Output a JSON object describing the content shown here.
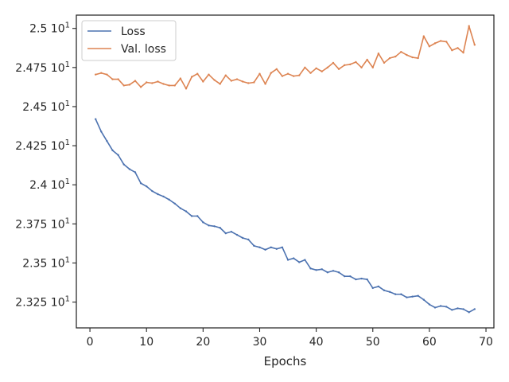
{
  "chart_data": {
    "type": "line",
    "xlabel": "Epochs",
    "ylabel": "",
    "xlim": [
      -2.4,
      71.4
    ],
    "ylim": [
      23.085,
      25.085
    ],
    "xticks": [
      0,
      10,
      20,
      30,
      40,
      50,
      60,
      70
    ],
    "xtick_labels": [
      "0",
      "10",
      "20",
      "30",
      "40",
      "50",
      "60",
      "70"
    ],
    "yticks": [
      23.25,
      23.5,
      23.75,
      24.0,
      24.25,
      24.5,
      24.75,
      25.0
    ],
    "ytick_labels": [
      "2.325 × 10¹",
      "2.35 × 10¹",
      "2.375 × 10¹",
      "2.4 × 10¹",
      "2.425 × 10¹",
      "2.45 × 10¹",
      "2.475 × 10¹",
      "2.5 × 10¹"
    ],
    "legend_position": "top-left",
    "grid": false,
    "series": [
      {
        "name": "Loss",
        "color": "#4c72b0",
        "x": [
          1,
          2,
          3,
          4,
          5,
          6,
          7,
          8,
          9,
          10,
          11,
          12,
          13,
          14,
          15,
          16,
          17,
          18,
          19,
          20,
          21,
          22,
          23,
          24,
          25,
          26,
          27,
          28,
          29,
          30,
          31,
          32,
          33,
          34,
          35,
          36,
          37,
          38,
          39,
          40,
          41,
          42,
          43,
          44,
          45,
          46,
          47,
          48,
          49,
          50,
          51,
          52,
          53,
          54,
          55,
          56,
          57,
          58,
          59,
          60,
          61,
          62,
          63,
          64,
          65,
          66,
          67,
          68
        ],
        "values": [
          24.42,
          24.34,
          24.28,
          24.22,
          24.19,
          24.13,
          24.1,
          24.08,
          24.01,
          23.99,
          23.96,
          23.94,
          23.925,
          23.905,
          23.88,
          23.85,
          23.83,
          23.8,
          23.8,
          23.76,
          23.74,
          23.735,
          23.725,
          23.69,
          23.7,
          23.68,
          23.66,
          23.65,
          23.61,
          23.6,
          23.585,
          23.6,
          23.59,
          23.6,
          23.52,
          23.53,
          23.505,
          23.52,
          23.465,
          23.455,
          23.46,
          23.44,
          23.45,
          23.44,
          23.415,
          23.415,
          23.395,
          23.4,
          23.395,
          23.34,
          23.35,
          23.325,
          23.315,
          23.3,
          23.3,
          23.28,
          23.285,
          23.29,
          23.265,
          23.235,
          23.215,
          23.225,
          23.22,
          23.2,
          23.21,
          23.205,
          23.185,
          23.205
        ]
      },
      {
        "name": "Val. loss",
        "color": "#dd8452",
        "x": [
          1,
          2,
          3,
          4,
          5,
          6,
          7,
          8,
          9,
          10,
          11,
          12,
          13,
          14,
          15,
          16,
          17,
          18,
          19,
          20,
          21,
          22,
          23,
          24,
          25,
          26,
          27,
          28,
          29,
          30,
          31,
          32,
          33,
          34,
          35,
          36,
          37,
          38,
          39,
          40,
          41,
          42,
          43,
          44,
          45,
          46,
          47,
          48,
          49,
          50,
          51,
          52,
          53,
          54,
          55,
          56,
          57,
          58,
          59,
          60,
          61,
          62,
          63,
          64,
          65,
          66,
          67,
          68
        ],
        "values": [
          24.705,
          24.715,
          24.705,
          24.675,
          24.675,
          24.635,
          24.64,
          24.665,
          24.625,
          24.655,
          24.65,
          24.66,
          24.645,
          24.635,
          24.635,
          24.68,
          24.615,
          24.69,
          24.71,
          24.66,
          24.705,
          24.67,
          24.645,
          24.7,
          24.665,
          24.675,
          24.66,
          24.65,
          24.655,
          24.71,
          24.645,
          24.715,
          24.74,
          24.695,
          24.71,
          24.695,
          24.7,
          24.75,
          24.715,
          24.745,
          24.725,
          24.75,
          24.78,
          24.74,
          24.765,
          24.77,
          24.785,
          24.75,
          24.8,
          24.75,
          24.84,
          24.78,
          24.81,
          24.82,
          24.85,
          24.83,
          24.815,
          24.81,
          24.95,
          24.885,
          24.905,
          24.92,
          24.915,
          24.86,
          24.875,
          24.845,
          25.015,
          24.895
        ]
      }
    ]
  }
}
